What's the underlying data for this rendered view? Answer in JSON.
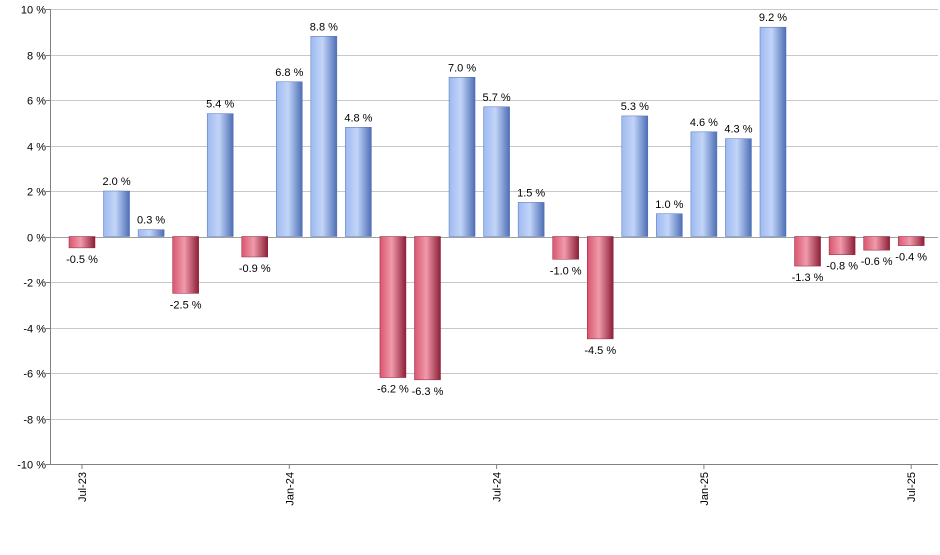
{
  "chart_data": {
    "type": "bar",
    "categories": [
      "Jul-23",
      "Aug-23",
      "Sep-23",
      "Oct-23",
      "Nov-23",
      "Dec-23",
      "Jan-24",
      "Feb-24",
      "Mar-24",
      "Apr-24",
      "May-24",
      "Jun-24",
      "Jul-24",
      "Aug-24",
      "Sep-24",
      "Oct-24",
      "Nov-24",
      "Dec-24",
      "Jan-25",
      "Feb-25",
      "Mar-25",
      "Apr-25",
      "May-25",
      "Jun-25",
      "Jul-25"
    ],
    "values": [
      -0.5,
      2.0,
      0.3,
      -2.5,
      5.4,
      -0.9,
      6.8,
      8.8,
      4.8,
      -6.2,
      -6.3,
      7.0,
      5.7,
      1.5,
      -1.0,
      -4.5,
      5.3,
      1.0,
      4.6,
      4.3,
      9.2,
      -1.3,
      -0.8,
      -0.6,
      -0.4
    ],
    "value_labels": [
      "-0.5 %",
      "2.0 %",
      "0.3 %",
      "-2.5 %",
      "5.4 %",
      "-0.9 %",
      "6.8 %",
      "8.8 %",
      "4.8 %",
      "-6.2 %",
      "-6.3 %",
      "7.0 %",
      "5.7 %",
      "1.5 %",
      "-1.0 %",
      "-4.5 %",
      "5.3 %",
      "1.0 %",
      "4.6 %",
      "4.3 %",
      "9.2 %",
      "-1.3 %",
      "-0.8 %",
      "-0.6 %",
      "-0.4 %"
    ],
    "x_tick_labels": [
      {
        "label": "Jul-23",
        "category": "Jul-23"
      },
      {
        "label": "Jan-24",
        "category": "Jan-24"
      },
      {
        "label": "Jul-24",
        "category": "Jul-24"
      },
      {
        "label": "Jan-25",
        "category": "Jan-25"
      },
      {
        "label": "Jul-25",
        "category": "Jul-25"
      }
    ],
    "y_ticks": [
      10,
      8,
      6,
      4,
      2,
      0,
      -2,
      -4,
      -6,
      -8,
      -10
    ],
    "y_tick_labels": [
      "10 %",
      "8 %",
      "6 %",
      "4 %",
      "2 %",
      "0 %",
      "-2 %",
      "-4 %",
      "-6 %",
      "-8 %",
      "-10 %"
    ],
    "ylim": [
      -10,
      10
    ],
    "title": "",
    "xlabel": "",
    "ylabel": "",
    "grid": true,
    "colors": {
      "positive": "#7b9de0",
      "positive_light": "#b3cbf5",
      "positive_dark": "#4a6db8",
      "negative": "#c8405a",
      "negative_light": "#ee8fa1",
      "negative_dark": "#8e2139",
      "grid": "#c8c8c8",
      "axis": "#808080"
    }
  }
}
